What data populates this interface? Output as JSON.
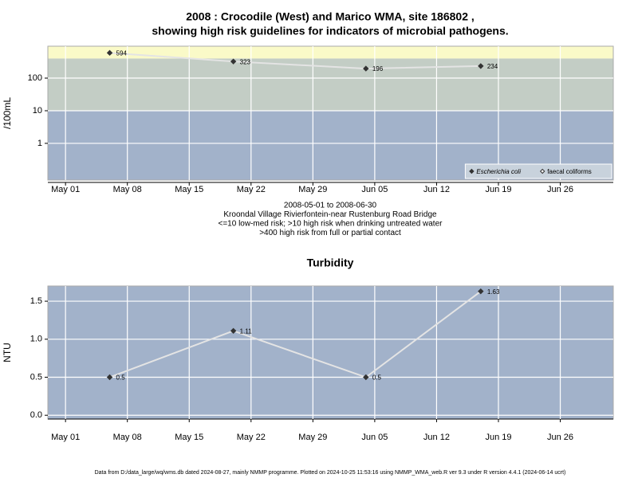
{
  "chart_data": [
    {
      "type": "line",
      "title": [
        "2008 : Crocodile (West) and Marico WMA, site 186802 ,",
        "showing high risk guidelines for indicators of microbial pathogens."
      ],
      "ylabel": "/100mL",
      "notes": [
        "2008-05-01 to 2008-06-30",
        "Kroondal Village Rivierfontein-near Rustenburg Road Bridge",
        "<=10 low-med risk; >10 high risk when drinking untreated water",
        ">400 high risk from full or partial contact"
      ],
      "x": [
        "2008-05-06",
        "2008-05-20",
        "2008-06-04",
        "2008-06-17"
      ],
      "series": [
        {
          "name": "Escherichia coli",
          "color": "#333333",
          "filled": true,
          "values": [
            594,
            323,
            196,
            234
          ]
        },
        {
          "name": "faecal coliforms",
          "color": "#333333",
          "filled": false,
          "values": [
            null,
            null,
            null,
            null
          ]
        }
      ],
      "line_color": "#e4e4e4",
      "log_scale": true,
      "ylim": [
        0.075,
        950
      ],
      "yticks": [
        1,
        10,
        100
      ],
      "xlim": [
        "2008-04-29",
        "2008-07-02"
      ],
      "xticks": [
        {
          "value": "2008-05-01",
          "label": "May 01"
        },
        {
          "value": "2008-05-08",
          "label": "May 08"
        },
        {
          "value": "2008-05-15",
          "label": "May 15"
        },
        {
          "value": "2008-05-22",
          "label": "May 22"
        },
        {
          "value": "2008-05-29",
          "label": "May 29"
        },
        {
          "value": "2008-06-05",
          "label": "Jun 05"
        },
        {
          "value": "2008-06-12",
          "label": "Jun 12"
        },
        {
          "value": "2008-06-19",
          "label": "Jun 19"
        },
        {
          "value": "2008-06-26",
          "label": "Jun 26"
        }
      ],
      "band_thresholds": [
        10,
        400
      ],
      "band_colors": [
        "#a2b2ca",
        "#c3cdc5",
        "#fafac8"
      ],
      "grid": true,
      "legend": "bottom-right"
    },
    {
      "type": "line",
      "title": [
        "Turbidity"
      ],
      "ylabel": "NTU",
      "x": [
        "2008-05-06",
        "2008-05-20",
        "2008-06-04",
        "2008-06-17"
      ],
      "series": [
        {
          "name": null,
          "color": "#333333",
          "filled": true,
          "values": [
            0.5,
            1.11,
            0.5,
            1.63
          ]
        }
      ],
      "line_color": "#e4e4e4",
      "log_scale": false,
      "ylim": [
        -0.05,
        1.7
      ],
      "yticks": [
        {
          "value": 0,
          "label": "0.0"
        },
        0.5,
        {
          "value": 1,
          "label": "1.0"
        },
        1.5
      ],
      "xlim": [
        "2008-04-29",
        "2008-07-02"
      ],
      "xticks": [
        {
          "value": "2008-05-01",
          "label": "May 01"
        },
        {
          "value": "2008-05-08",
          "label": "May 08"
        },
        {
          "value": "2008-05-15",
          "label": "May 15"
        },
        {
          "value": "2008-05-22",
          "label": "May 22"
        },
        {
          "value": "2008-05-29",
          "label": "May 29"
        },
        {
          "value": "2008-06-05",
          "label": "Jun 05"
        },
        {
          "value": "2008-06-12",
          "label": "Jun 12"
        },
        {
          "value": "2008-06-19",
          "label": "Jun 19"
        },
        {
          "value": "2008-06-26",
          "label": "Jun 26"
        }
      ],
      "band_colors": [
        "#a2b2ca"
      ],
      "grid": true
    }
  ],
  "footer": "Data from D:/data_large/wq/wms.db dated 2024-08-27, mainly NMMP programme. Plotted on 2024-10-25 11:53:16 using NMMP_WMA_web.R ver 9.3 under R version 4.4.1 (2024-06-14 ucrt)"
}
